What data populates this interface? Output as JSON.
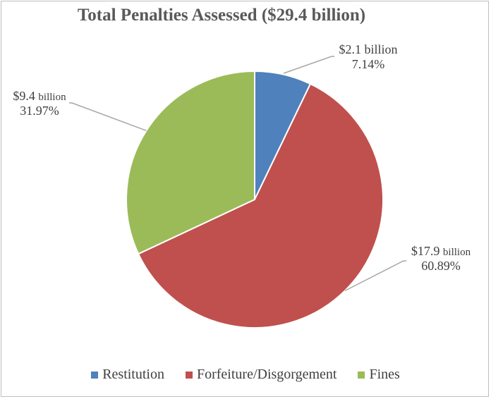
{
  "chart_data": {
    "type": "pie",
    "title": "Total Penalties Assessed ($29.4 billion)",
    "slices": [
      {
        "name": "Restitution",
        "value": 7.14,
        "amount": "$2.1",
        "unit": "billion",
        "percent_label": "7.14%",
        "color": "#4F81BD"
      },
      {
        "name": "Forfeiture/Disgorgement",
        "value": 60.89,
        "amount": "$17.9",
        "unit": "billion",
        "percent_label": "60.89%",
        "color": "#C0504D"
      },
      {
        "name": "Fines",
        "value": 31.97,
        "amount": "$9.4",
        "unit": "billion",
        "percent_label": "31.97%",
        "color": "#9BBB59"
      }
    ],
    "legend_position": "bottom"
  }
}
